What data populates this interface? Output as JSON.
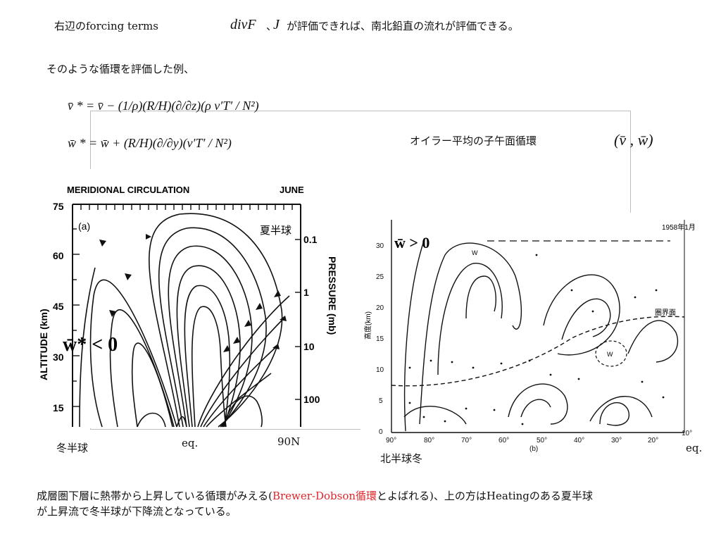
{
  "header": {
    "forcing_terms": "右辺のforcing terms",
    "div_expr": "divF",
    "comma": "、",
    "J": "J",
    "rest": "が評価できれば、南北鉛直の流れが評価できる。"
  },
  "subheading": "そのような循環を評価した例、",
  "equations": {
    "v_lhs": "v̄ *",
    "v_rhs": "= v̄ − (1/ρ)(R/H)(∂/∂z)(ρ v′T′ / N²)",
    "w_lhs": "w̄ *",
    "w_rhs": "= w̄ + (R/H)(∂/∂y)(v′T′ / N²)"
  },
  "euler_label": "オイラー平均の子午面循環",
  "euler_vars": "(v̄ , w̄)",
  "left_figure": {
    "title": "MERIDIONAL CIRCULATION",
    "month": "JUNE",
    "panel": "(a)",
    "yaxis_label": "ALTITUDE (km)",
    "yticks": [
      "75",
      "60",
      "45",
      "30",
      "15"
    ],
    "paxis_label": "PRESSURE (mb)",
    "pticks": [
      "0.1",
      "1",
      "10",
      "100"
    ],
    "summer_label": "夏半球",
    "w_label": "w̄* < 0"
  },
  "right_figure": {
    "year_label": "1958年1月",
    "tropopause_label": "圏界面",
    "yaxis_label": "高度(km)",
    "yticks": [
      "30",
      "25",
      "20",
      "15",
      "10",
      "5",
      "0"
    ],
    "xticks": [
      "90°",
      "80°",
      "70°",
      "60°",
      "50°",
      "40°",
      "30°",
      "20°",
      "10°"
    ],
    "panel": "(b)",
    "w_mark": "W",
    "w_label": "w̄ > 0"
  },
  "bottom_labels": {
    "winter": "冬半球",
    "eq_left": "eq.",
    "n90": "90N",
    "nh_winter": "北半球冬",
    "eq_right": "eq."
  },
  "conclusion": {
    "part1": "成層圏下層に熱帯から上昇している循環がみえる(",
    "highlight": "Brewer-Dobson循環",
    "part2": "とよばれる)、上の方はHeatingのある夏半球",
    "line2": "が上昇流で冬半球が下降流となっている。"
  },
  "colors": {
    "highlight": "#e0252a",
    "frame": "#bdbdbd"
  }
}
